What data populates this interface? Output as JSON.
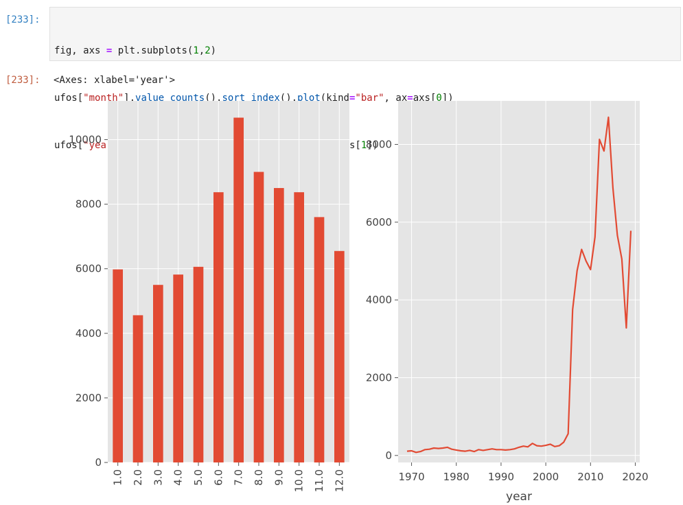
{
  "cell": {
    "in_prompt": "[233]:",
    "out_prompt": "[233]:",
    "code_lines": [
      [
        "fig, axs ",
        "=",
        " plt.subplots(1,2)"
      ],
      [
        "ufos[\"month\"].value_counts().sort_index().plot(kind=\"bar\", ax=axs[0])"
      ],
      [
        "ufos[\"year\"].value_counts().sort_index().plot(ax=axs[1])"
      ]
    ],
    "output_text": "<Axes: xlabel='year'>"
  },
  "colors": {
    "bar": "#e24a33",
    "line": "#e24a33",
    "plot_bg": "#e5e5e5",
    "grid": "#ffffff"
  },
  "chart_data": [
    {
      "type": "bar",
      "categories": [
        "1.0",
        "2.0",
        "3.0",
        "4.0",
        "5.0",
        "6.0",
        "7.0",
        "8.0",
        "9.0",
        "10.0",
        "11.0",
        "12.0"
      ],
      "values": [
        5980,
        4560,
        5500,
        5820,
        6060,
        8370,
        10680,
        9000,
        8500,
        8370,
        7600,
        6550
      ],
      "yticks": [
        0,
        2000,
        4000,
        6000,
        8000,
        10000
      ],
      "ylim": [
        0,
        11200
      ],
      "xlabel": "",
      "ylabel": "",
      "grid": true
    },
    {
      "type": "line",
      "xlabel": "year",
      "ylabel": "",
      "xlim": [
        1967,
        2021
      ],
      "ylim": [
        -180,
        9120
      ],
      "xticks": [
        1970,
        1980,
        1990,
        2000,
        2010,
        2020
      ],
      "yticks": [
        0,
        2000,
        4000,
        6000,
        8000
      ],
      "grid": true,
      "series": [
        {
          "x": [
            1969,
            1970,
            1971,
            1972,
            1973,
            1974,
            1975,
            1976,
            1977,
            1978,
            1979,
            1980,
            1981,
            1982,
            1983,
            1984,
            1985,
            1986,
            1987,
            1988,
            1989,
            1990,
            1991,
            1992,
            1993,
            1994,
            1995,
            1996,
            1997,
            1998,
            1999,
            2000,
            2001,
            2002,
            2003,
            2004,
            2005,
            2006,
            2007,
            2008,
            2009,
            2010,
            2011,
            2012,
            2013,
            2014,
            2015,
            2016,
            2017,
            2018,
            2019
          ],
          "y": [
            110,
            120,
            80,
            100,
            150,
            160,
            190,
            180,
            190,
            210,
            160,
            140,
            120,
            110,
            130,
            100,
            150,
            130,
            150,
            170,
            150,
            150,
            140,
            150,
            170,
            210,
            240,
            220,
            310,
            250,
            240,
            260,
            290,
            230,
            250,
            340,
            560,
            3750,
            4750,
            5300,
            5000,
            4780,
            5620,
            8130,
            7830,
            8700,
            6880,
            5660,
            5050,
            3280,
            5780
          ]
        }
      ]
    }
  ]
}
